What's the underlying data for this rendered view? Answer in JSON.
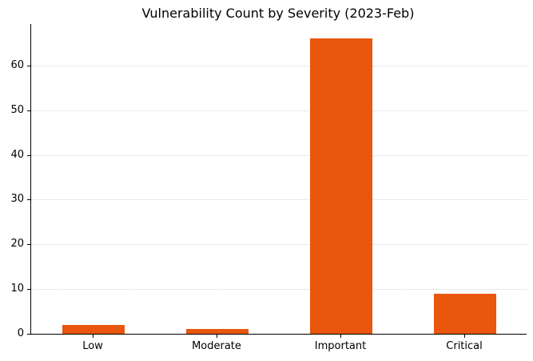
{
  "chart_data": {
    "type": "bar",
    "title": "Vulnerability Count by Severity (2023-Feb)",
    "categories": [
      "Low",
      "Moderate",
      "Important",
      "Critical"
    ],
    "values": [
      2,
      1,
      66,
      9
    ],
    "xlabel": "",
    "ylabel": "",
    "ylim": [
      0,
      69.3
    ],
    "yticks": [
      0,
      10,
      20,
      30,
      40,
      50,
      60
    ],
    "bar_color": "#e8570d",
    "axis_color": "#000000",
    "text_color": "#000000",
    "grid": {
      "axis": "y",
      "style": "dotted",
      "color": "#d4d4d4",
      "below_bars": true
    },
    "legend": "none",
    "bar_width_fraction": 0.5,
    "background": "#ffffff"
  }
}
